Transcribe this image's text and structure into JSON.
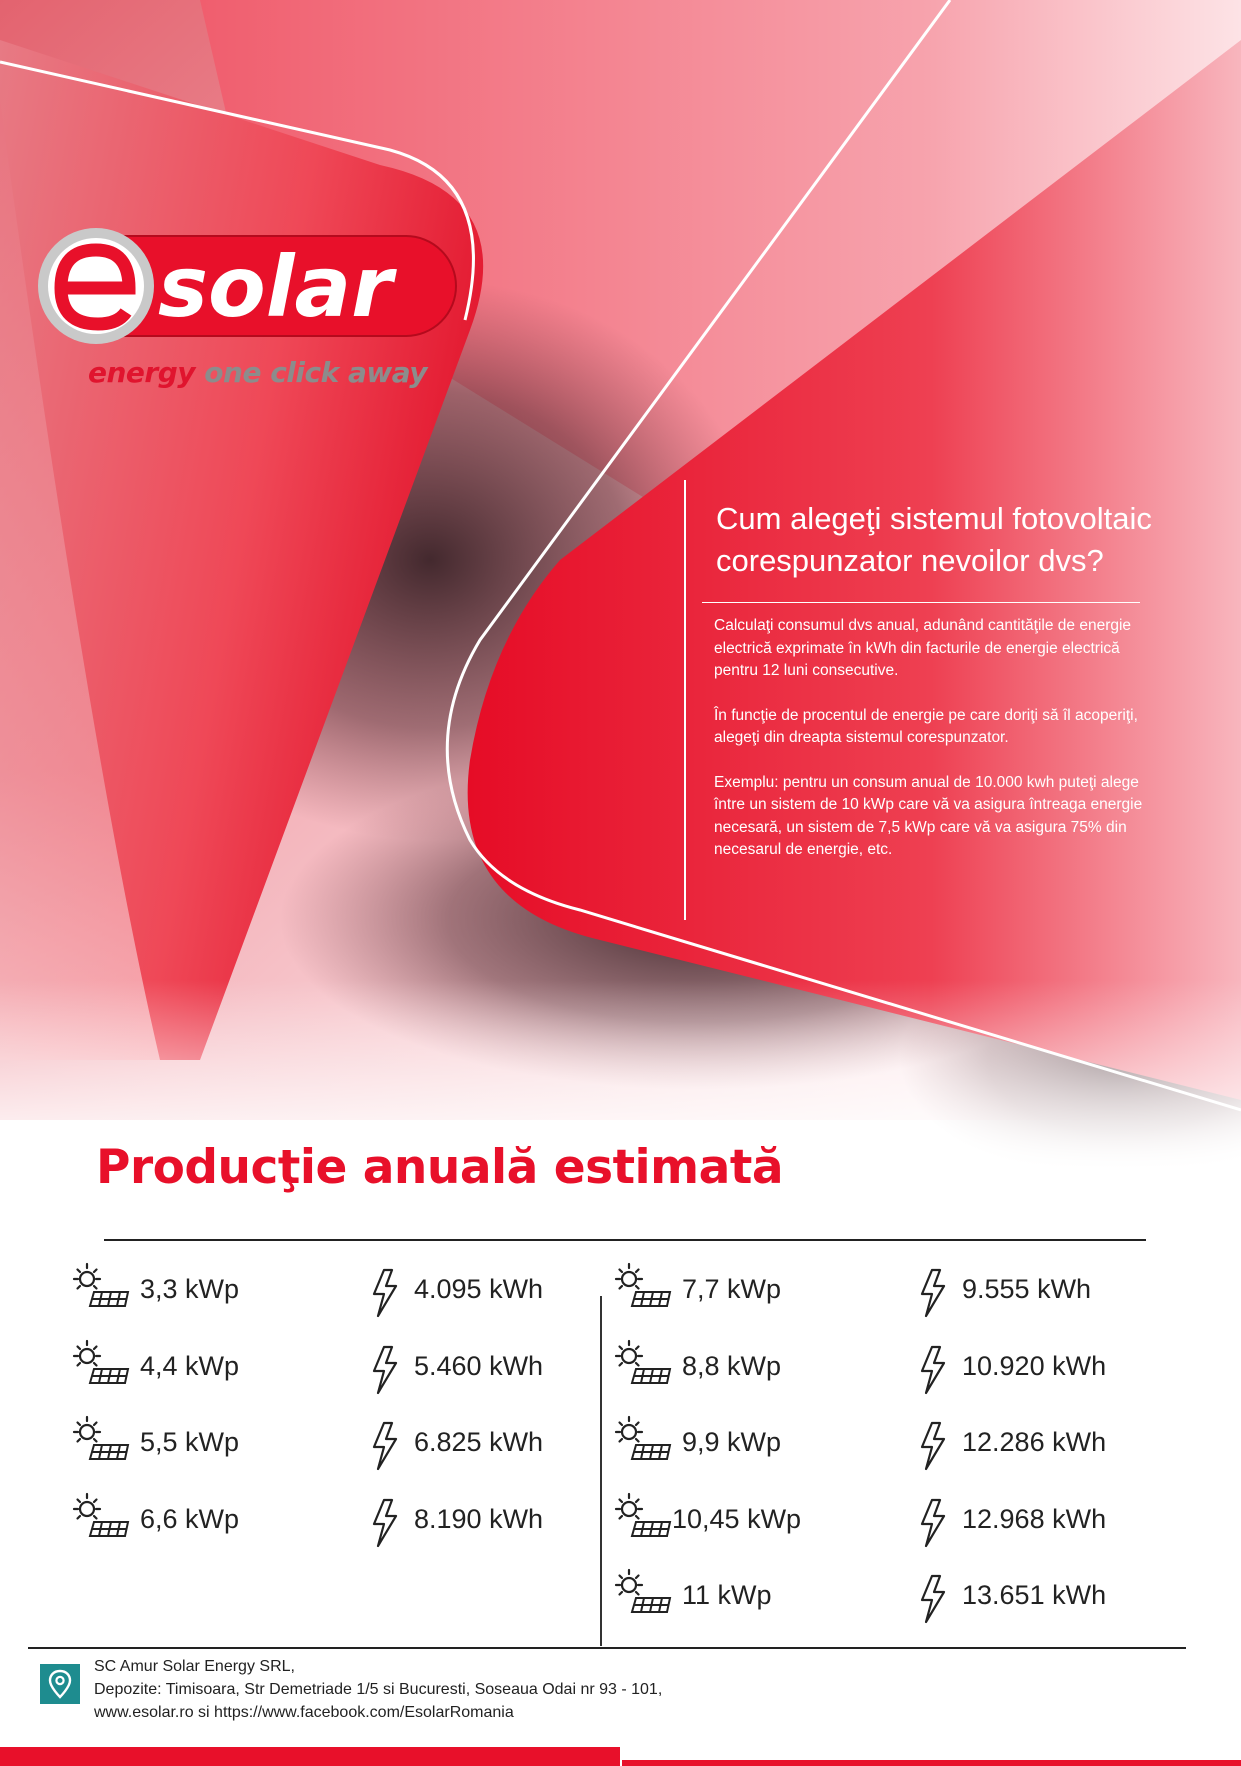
{
  "brand": {
    "logo_letter": "e",
    "logo_word": "solar",
    "tagline_part1": "energy",
    "tagline_part2": "one click away",
    "colors": {
      "red": "#e8102a",
      "teal": "#1e8c8f",
      "gray": "#8c8c8c"
    }
  },
  "info": {
    "heading": "Cum alegeţi sistemul fotovoltaic corespunzator nevoilor dvs?",
    "paragraphs": [
      "Calculaţi consumul dvs anual, adunând cantităţile de energie electrică exprimate în kWh din facturile de energie electrică pentru 12 luni consecutive.",
      "În funcţie de procentul de energie pe care doriţi să îl acoperiţi, alegeţi din dreapta sistemul corespunzator.",
      "Exemplu: pentru un consum anual de 10.000 kwh puteţi alege între un sistem de 10 kWp care vă va asigura întreaga energie necesară, un sistem de 7,5 kWp care vă va asigura 75% din necesarul de energie, etc."
    ]
  },
  "production": {
    "title": "Producţie anuală estimată",
    "left": [
      {
        "power": "3,3 kWp",
        "energy": "4.095 kWh"
      },
      {
        "power": "4,4 kWp",
        "energy": "5.460 kWh"
      },
      {
        "power": "5,5 kWp",
        "energy": "6.825 kWh"
      },
      {
        "power": "6,6 kWp",
        "energy": "8.190 kWh"
      }
    ],
    "right": [
      {
        "power": "7,7 kWp",
        "energy": "9.555 kWh"
      },
      {
        "power": "8,8 kWp",
        "energy": "10.920 kWh"
      },
      {
        "power": "9,9 kWp",
        "energy": "12.286 kWh"
      },
      {
        "power": "10,45 kWp",
        "energy": "12.968 kWh"
      },
      {
        "power": "11 kWp",
        "energy": "13.651 kWh"
      }
    ],
    "icons": {
      "power": "solar-panel-sun-icon",
      "energy": "lightning-bolt-icon"
    }
  },
  "footer": {
    "icon": "location-pin-icon",
    "company": "SC Amur Solar Energy SRL,",
    "depots": "Depozite: Timisoara, Str Demetriade 1/5 si Bucuresti, Soseaua Odai nr 93 - 101,",
    "web": "www.esolar.ro si https://www.facebook.com/EsolarRomania"
  }
}
